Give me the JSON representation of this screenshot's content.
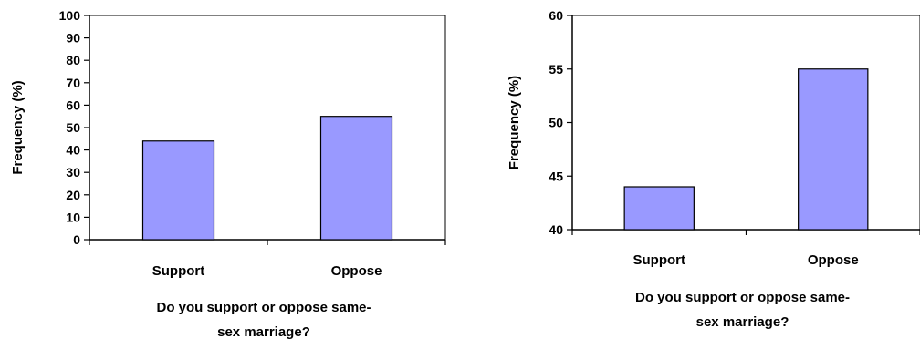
{
  "chart_data": [
    {
      "type": "bar",
      "categories": [
        "Support",
        "Oppose"
      ],
      "values": [
        44,
        55
      ],
      "xlabel_lines": [
        "Do you support or oppose same-",
        "sex marriage?"
      ],
      "ylabel": "Frequency (%)",
      "ylim": [
        0,
        100
      ],
      "yticks": [
        "0",
        "10",
        "20",
        "30",
        "40",
        "50",
        "60",
        "70",
        "80",
        "90",
        "100"
      ],
      "grid": false,
      "bar_color": "#9999ff"
    },
    {
      "type": "bar",
      "categories": [
        "Support",
        "Oppose"
      ],
      "values": [
        44,
        55
      ],
      "xlabel_lines": [
        "Do you support or oppose same-",
        "sex marriage?"
      ],
      "ylabel": "Frequency (%)",
      "ylim": [
        40,
        60
      ],
      "yticks": [
        "40",
        "45",
        "50",
        "55",
        "60"
      ],
      "grid": false,
      "bar_color": "#9999ff"
    }
  ]
}
